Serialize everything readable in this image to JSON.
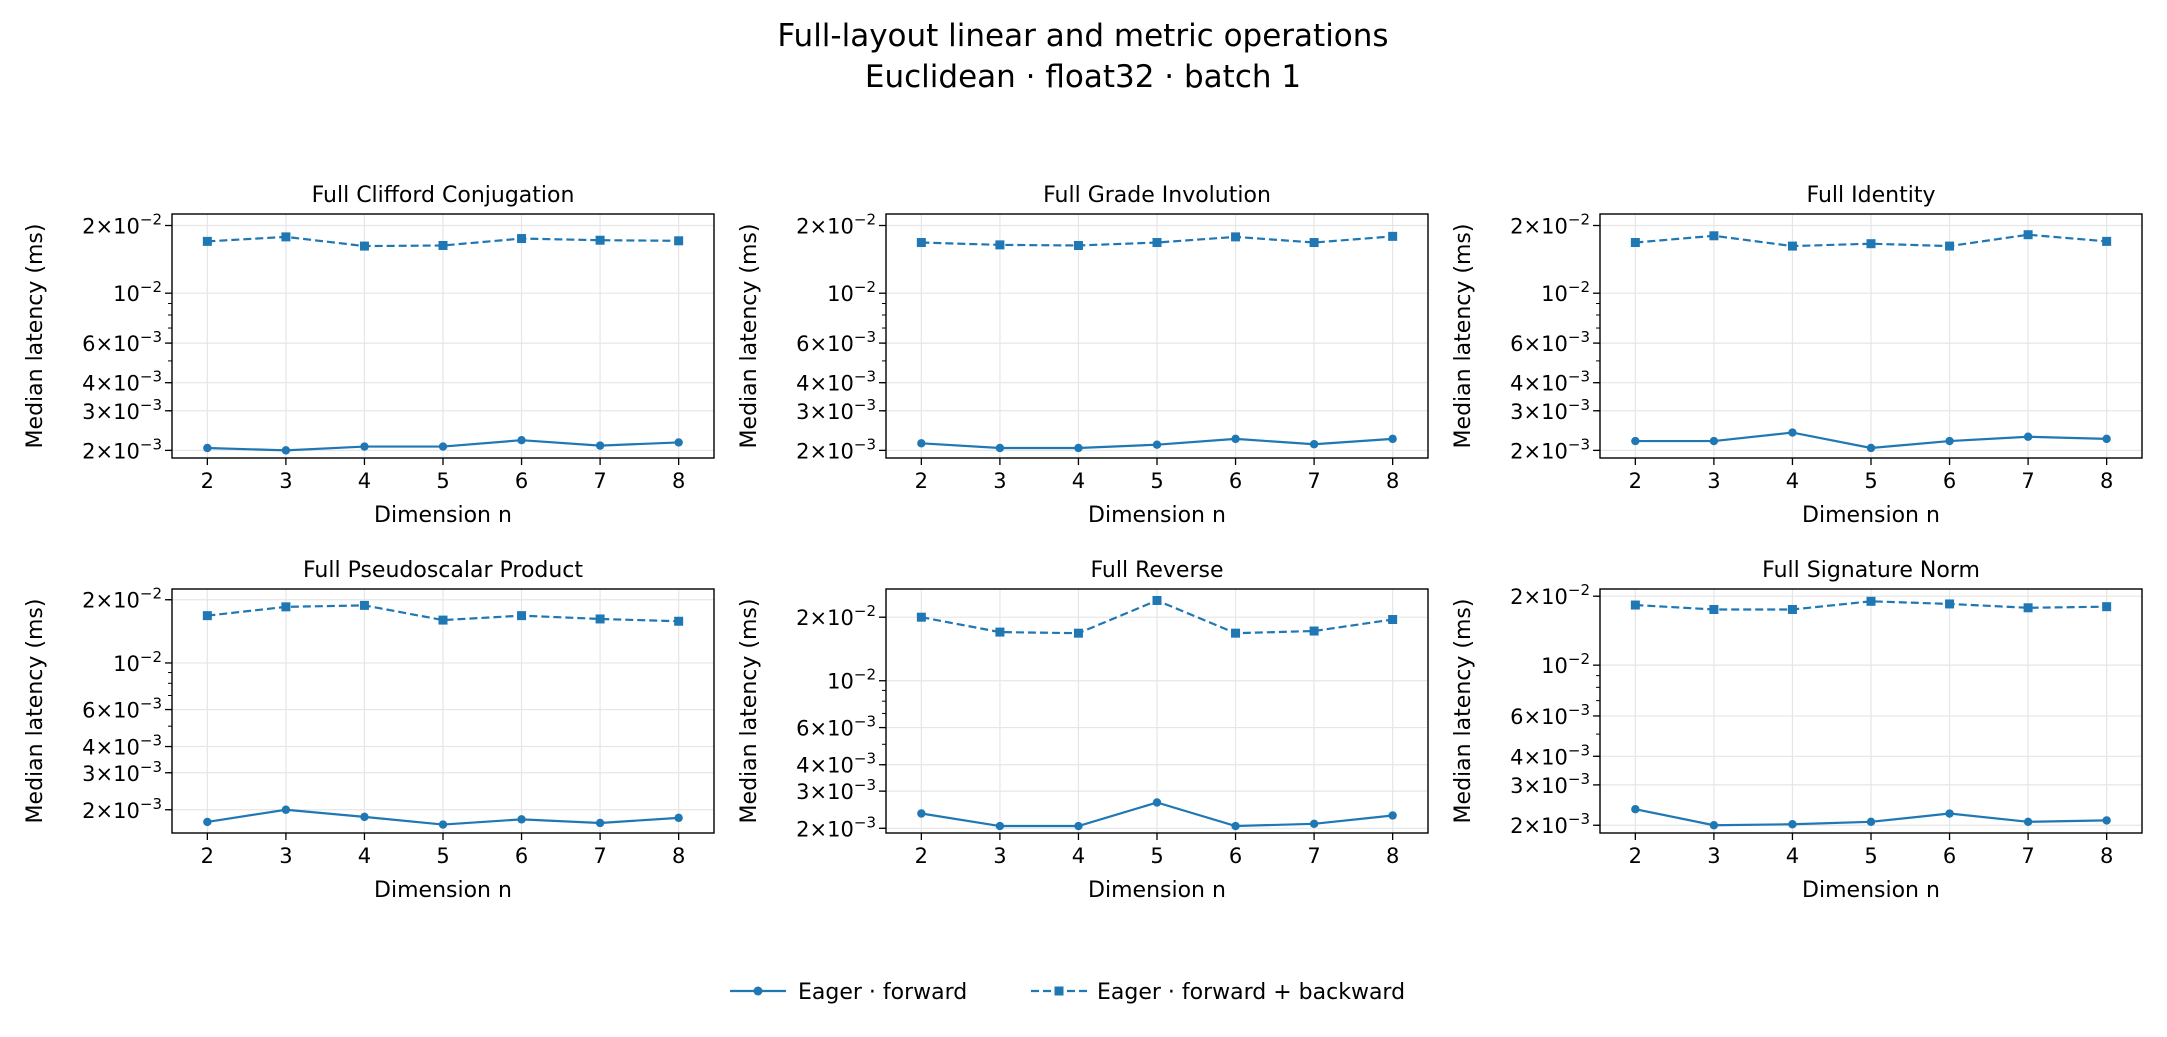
{
  "figure": {
    "title_line1": "Full-layout linear and metric operations",
    "title_line2": "Euclidean · float32 · batch 1"
  },
  "legend": {
    "placement": "bottom-center",
    "entries": [
      {
        "name": "Eager · forward",
        "style": "solid",
        "marker": "circle"
      },
      {
        "name": "Eager · forward + backward",
        "style": "dashed",
        "marker": "square"
      }
    ]
  },
  "colors": {
    "series": "#1f77b4",
    "grid": "#e6e6e6"
  },
  "chart_data": [
    {
      "type": "line",
      "title": "Full Clifford Conjugation",
      "xlabel": "Dimension n",
      "ylabel": "Median latency (ms)",
      "x": [
        2,
        3,
        4,
        5,
        6,
        7,
        8
      ],
      "yscale": "log",
      "ylim": [
        0.00185,
        0.0225
      ],
      "yticks": [
        {
          "value": 0.02,
          "mant": "2",
          "exp": "−2"
        },
        {
          "value": 0.01,
          "mant": "",
          "exp": "−2"
        },
        {
          "value": 0.006,
          "mant": "6",
          "exp": "−3"
        },
        {
          "value": 0.004,
          "mant": "4",
          "exp": "−3"
        },
        {
          "value": 0.003,
          "mant": "3",
          "exp": "−3"
        },
        {
          "value": 0.002,
          "mant": "2",
          "exp": "−3"
        }
      ],
      "grid": true,
      "series": [
        {
          "name": "Eager · forward",
          "values": [
            0.00205,
            0.002,
            0.00208,
            0.00208,
            0.00222,
            0.0021,
            0.00217
          ]
        },
        {
          "name": "Eager · forward + backward",
          "values": [
            0.017,
            0.0178,
            0.0162,
            0.0163,
            0.0175,
            0.0172,
            0.0171
          ]
        }
      ]
    },
    {
      "type": "line",
      "title": "Full Grade Involution",
      "xlabel": "Dimension n",
      "ylabel": "Median latency (ms)",
      "x": [
        2,
        3,
        4,
        5,
        6,
        7,
        8
      ],
      "yscale": "log",
      "ylim": [
        0.00185,
        0.0225
      ],
      "yticks": [
        {
          "value": 0.02,
          "mant": "2",
          "exp": "−2"
        },
        {
          "value": 0.01,
          "mant": "",
          "exp": "−2"
        },
        {
          "value": 0.006,
          "mant": "6",
          "exp": "−3"
        },
        {
          "value": 0.004,
          "mant": "4",
          "exp": "−3"
        },
        {
          "value": 0.003,
          "mant": "3",
          "exp": "−3"
        },
        {
          "value": 0.002,
          "mant": "2",
          "exp": "−3"
        }
      ],
      "grid": true,
      "series": [
        {
          "name": "Eager · forward",
          "values": [
            0.00215,
            0.00205,
            0.00205,
            0.00212,
            0.00225,
            0.00213,
            0.00225
          ]
        },
        {
          "name": "Eager · forward + backward",
          "values": [
            0.0168,
            0.0164,
            0.0163,
            0.0168,
            0.0178,
            0.0168,
            0.0179
          ]
        }
      ]
    },
    {
      "type": "line",
      "title": "Full Identity",
      "xlabel": "Dimension n",
      "ylabel": "Median latency (ms)",
      "x": [
        2,
        3,
        4,
        5,
        6,
        7,
        8
      ],
      "yscale": "log",
      "ylim": [
        0.00185,
        0.0225
      ],
      "yticks": [
        {
          "value": 0.02,
          "mant": "2",
          "exp": "−2"
        },
        {
          "value": 0.01,
          "mant": "",
          "exp": "−2"
        },
        {
          "value": 0.006,
          "mant": "6",
          "exp": "−3"
        },
        {
          "value": 0.004,
          "mant": "4",
          "exp": "−3"
        },
        {
          "value": 0.003,
          "mant": "3",
          "exp": "−3"
        },
        {
          "value": 0.002,
          "mant": "2",
          "exp": "−3"
        }
      ],
      "grid": true,
      "series": [
        {
          "name": "Eager · forward",
          "values": [
            0.0022,
            0.0022,
            0.0024,
            0.00205,
            0.0022,
            0.0023,
            0.00225
          ]
        },
        {
          "name": "Eager · forward + backward",
          "values": [
            0.0168,
            0.018,
            0.0162,
            0.0166,
            0.0162,
            0.0182,
            0.017
          ]
        }
      ]
    },
    {
      "type": "line",
      "title": "Full Pseudoscalar Product",
      "xlabel": "Dimension n",
      "ylabel": "Median latency (ms)",
      "x": [
        2,
        3,
        4,
        5,
        6,
        7,
        8
      ],
      "yscale": "log",
      "ylim": [
        0.00155,
        0.0225
      ],
      "yticks": [
        {
          "value": 0.02,
          "mant": "2",
          "exp": "−2"
        },
        {
          "value": 0.01,
          "mant": "",
          "exp": "−2"
        },
        {
          "value": 0.006,
          "mant": "6",
          "exp": "−3"
        },
        {
          "value": 0.004,
          "mant": "4",
          "exp": "−3"
        },
        {
          "value": 0.003,
          "mant": "3",
          "exp": "−3"
        },
        {
          "value": 0.002,
          "mant": "2",
          "exp": "−3"
        }
      ],
      "grid": true,
      "series": [
        {
          "name": "Eager · forward",
          "values": [
            0.00175,
            0.002,
            0.00185,
            0.0017,
            0.0018,
            0.00173,
            0.00183
          ]
        },
        {
          "name": "Eager · forward + backward",
          "values": [
            0.0168,
            0.0185,
            0.0188,
            0.016,
            0.0168,
            0.0162,
            0.0158
          ]
        }
      ]
    },
    {
      "type": "line",
      "title": "Full Reverse",
      "xlabel": "Dimension n",
      "ylabel": "Median latency (ms)",
      "x": [
        2,
        3,
        4,
        5,
        6,
        7,
        8
      ],
      "yscale": "log",
      "ylim": [
        0.0019,
        0.0272
      ],
      "yticks": [
        {
          "value": 0.02,
          "mant": "2",
          "exp": "−2"
        },
        {
          "value": 0.01,
          "mant": "",
          "exp": "−2"
        },
        {
          "value": 0.006,
          "mant": "6",
          "exp": "−3"
        },
        {
          "value": 0.004,
          "mant": "4",
          "exp": "−3"
        },
        {
          "value": 0.003,
          "mant": "3",
          "exp": "−3"
        },
        {
          "value": 0.002,
          "mant": "2",
          "exp": "−3"
        }
      ],
      "grid": true,
      "series": [
        {
          "name": "Eager · forward",
          "values": [
            0.00235,
            0.00205,
            0.00205,
            0.00265,
            0.00205,
            0.0021,
            0.0023
          ]
        },
        {
          "name": "Eager · forward + backward",
          "values": [
            0.02,
            0.017,
            0.0168,
            0.024,
            0.0168,
            0.0172,
            0.0195
          ]
        }
      ]
    },
    {
      "type": "line",
      "title": "Full Signature Norm",
      "xlabel": "Dimension n",
      "ylabel": "Median latency (ms)",
      "x": [
        2,
        3,
        4,
        5,
        6,
        7,
        8
      ],
      "yscale": "log",
      "ylim": [
        0.00185,
        0.0215
      ],
      "yticks": [
        {
          "value": 0.02,
          "mant": "2",
          "exp": "−2"
        },
        {
          "value": 0.01,
          "mant": "",
          "exp": "−2"
        },
        {
          "value": 0.006,
          "mant": "6",
          "exp": "−3"
        },
        {
          "value": 0.004,
          "mant": "4",
          "exp": "−3"
        },
        {
          "value": 0.003,
          "mant": "3",
          "exp": "−3"
        },
        {
          "value": 0.002,
          "mant": "2",
          "exp": "−3"
        }
      ],
      "grid": true,
      "series": [
        {
          "name": "Eager · forward",
          "values": [
            0.00235,
            0.002,
            0.00202,
            0.00207,
            0.00225,
            0.00207,
            0.0021
          ]
        },
        {
          "name": "Eager · forward + backward",
          "values": [
            0.0183,
            0.0175,
            0.0175,
            0.019,
            0.0185,
            0.0178,
            0.018
          ]
        }
      ]
    }
  ]
}
